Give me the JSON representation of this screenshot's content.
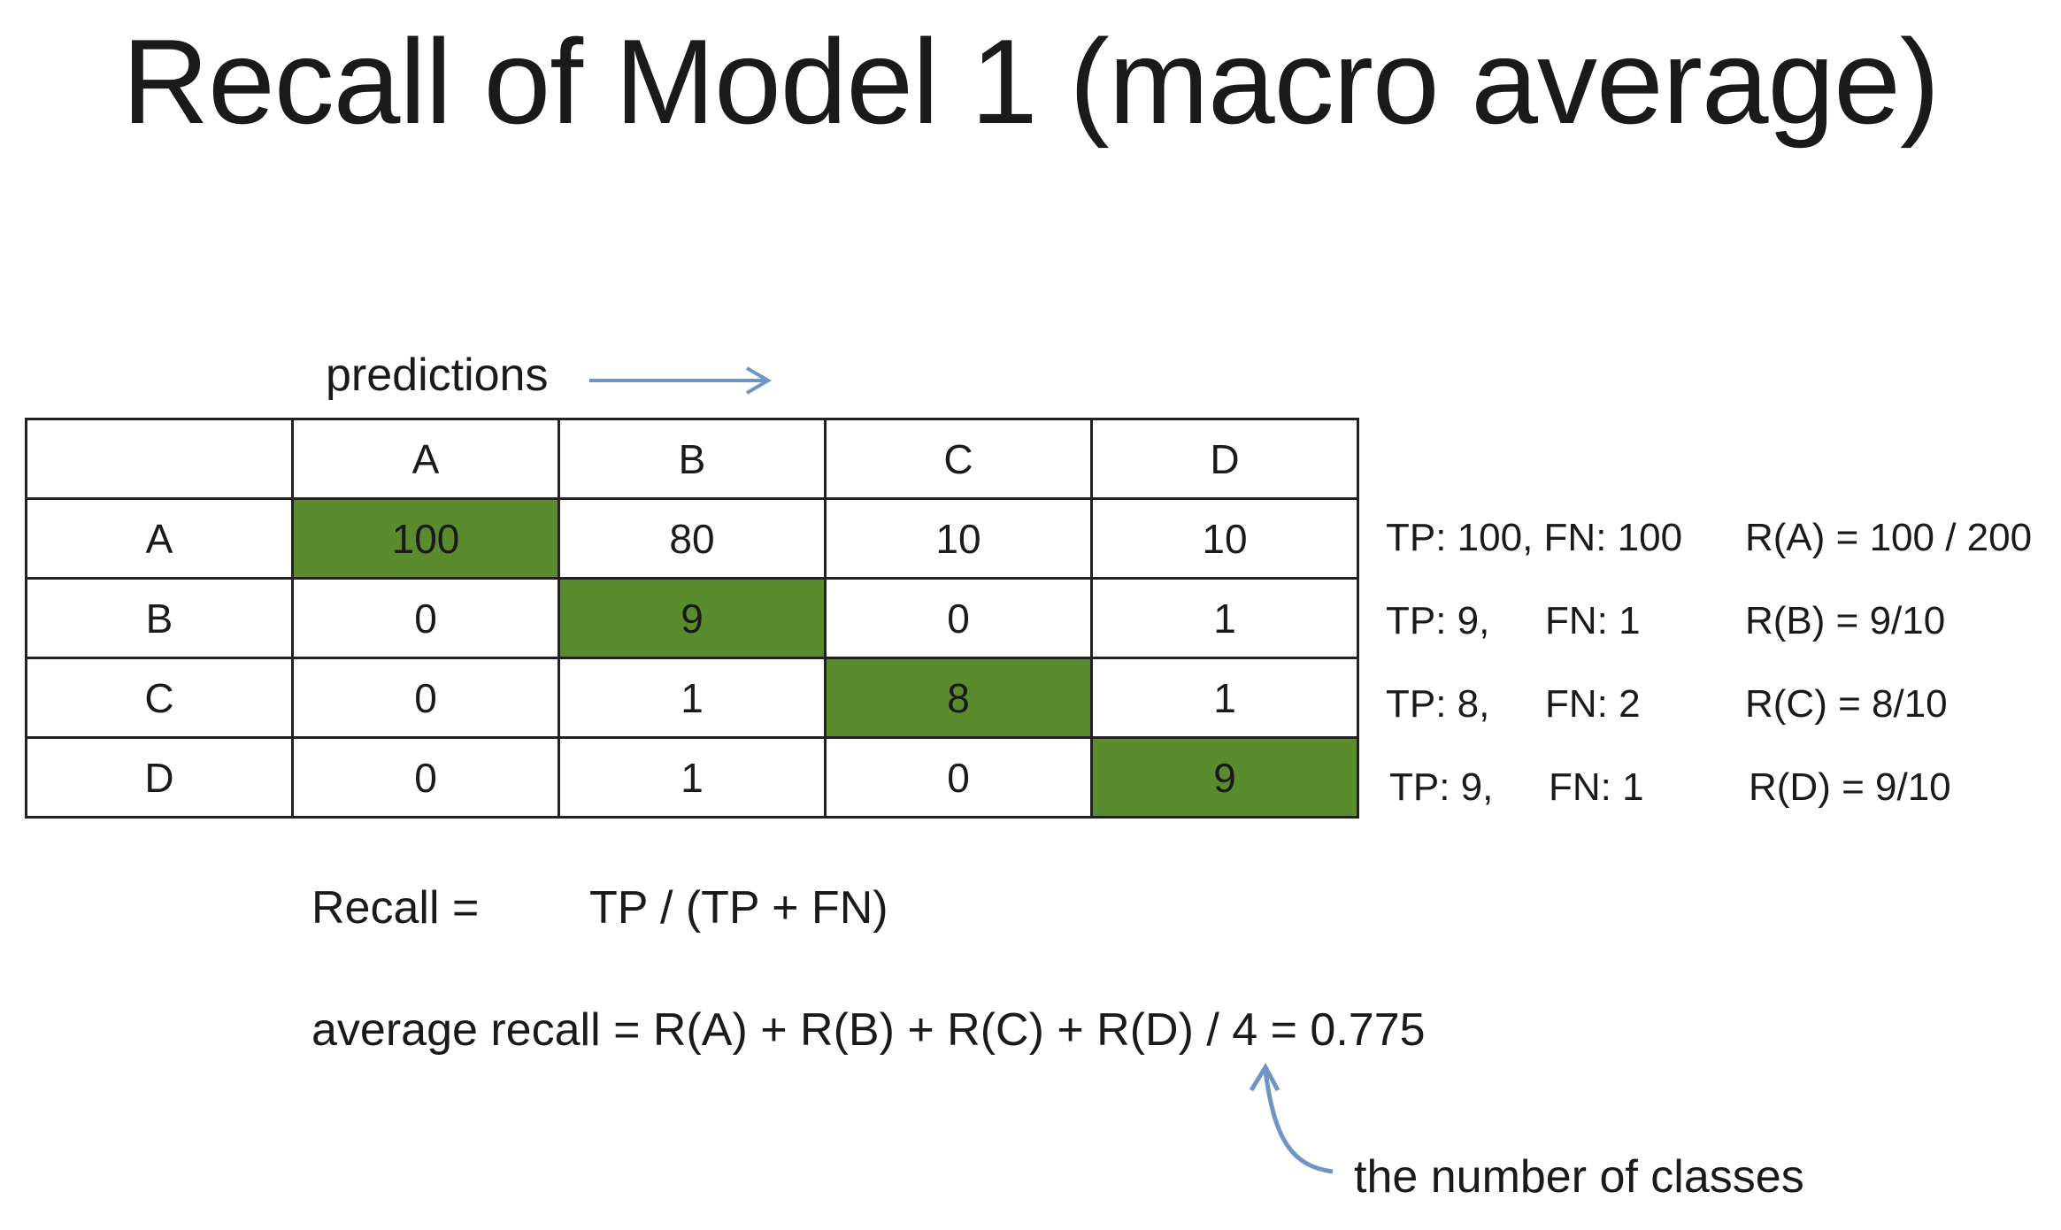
{
  "title": "Recall of Model 1 (macro average)",
  "predictions_label": "predictions",
  "matrix": {
    "header": [
      "",
      "A",
      "B",
      "C",
      "D"
    ],
    "rows": [
      {
        "label": "A",
        "cells": [
          "100",
          "80",
          "10",
          "10"
        ]
      },
      {
        "label": "B",
        "cells": [
          "0",
          "9",
          "0",
          "1"
        ]
      },
      {
        "label": "C",
        "cells": [
          "0",
          "1",
          "8",
          "1"
        ]
      },
      {
        "label": "D",
        "cells": [
          "0",
          "1",
          "0",
          "9"
        ]
      }
    ],
    "highlight_color": "#5a8b2d"
  },
  "stats": {
    "a_stat": "TP: 100, FN: 100",
    "a_recall": "R(A) = 100 / 200",
    "b_tp": "TP: 9,",
    "b_fn": "FN: 1",
    "b_recall": "R(B) = 9/10",
    "c_tp": "TP: 8,",
    "c_fn": "FN: 2",
    "c_recall": "R(C) = 8/10",
    "d_tp": "TP: 9,",
    "d_fn": "FN: 1",
    "d_recall": "R(D) = 9/10"
  },
  "formulas": {
    "recall_label": "Recall =",
    "recall_expr": "TP  / (TP + FN)",
    "average": "average recall = R(A) + R(B) + R(C) + R(D) / 4 = 0.775"
  },
  "note": "the number of classes",
  "arrow_color": "#6f95c4"
}
